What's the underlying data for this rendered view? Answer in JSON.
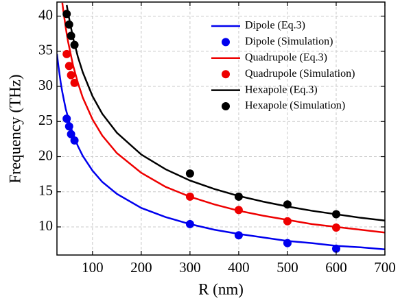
{
  "chart_data": {
    "type": "line",
    "xlabel": "R (nm)",
    "ylabel": "Frequency (THz)",
    "xlim": [
      27,
      700
    ],
    "ylim": [
      6,
      42
    ],
    "xticks": [
      100,
      200,
      300,
      400,
      500,
      600,
      700
    ],
    "yticks": [
      10,
      15,
      20,
      25,
      30,
      35,
      40
    ],
    "grid": true,
    "legend": "upper right",
    "x": [
      27,
      30,
      35,
      38,
      40,
      45,
      47,
      50,
      60,
      70,
      80,
      100,
      120,
      150,
      200,
      250,
      300,
      350,
      400,
      450,
      500,
      550,
      600,
      650,
      700
    ],
    "series": [
      {
        "name": "Dipole (Eq.3)",
        "type": "line",
        "color": "#0000ee",
        "values": [
          34.6,
          32.9,
          30.4,
          29.2,
          28.5,
          26.8,
          26.3,
          25.5,
          23.2,
          21.5,
          20.1,
          18.0,
          16.4,
          14.7,
          12.7,
          11.4,
          10.4,
          9.6,
          9.0,
          8.5,
          8.0,
          7.7,
          7.3,
          7.1,
          6.8
        ]
      },
      {
        "name": "Dipole (Simulation)",
        "type": "scatter",
        "color": "#0000ee",
        "x": [
          47,
          52,
          56,
          63,
          300,
          400,
          500,
          600
        ],
        "values": [
          25.4,
          24.3,
          23.2,
          22.3,
          10.4,
          8.8,
          7.7,
          6.9
        ]
      },
      {
        "name": "Quadrupole (Eq.3)",
        "type": "line",
        "color": "#ee0000",
        "values": [
          null,
          null,
          null,
          41.9,
          40.8,
          38.4,
          37.5,
          36.3,
          33.0,
          30.5,
          28.4,
          25.3,
          23.0,
          20.5,
          17.7,
          15.7,
          14.3,
          13.2,
          12.3,
          11.6,
          11.0,
          10.4,
          10.0,
          9.6,
          9.2
        ]
      },
      {
        "name": "Quadrupole (Simulation)",
        "type": "scatter",
        "color": "#ee0000",
        "x": [
          47,
          52,
          56,
          63,
          300,
          400,
          500,
          600
        ],
        "values": [
          34.6,
          32.9,
          31.6,
          30.5,
          14.3,
          12.4,
          10.8,
          9.9
        ]
      },
      {
        "name": "Hexapole (Eq.3)",
        "type": "line",
        "color": "#000000",
        "values": [
          null,
          null,
          null,
          null,
          null,
          null,
          41.6,
          40.4,
          36.9,
          34.2,
          32.0,
          28.6,
          26.1,
          23.4,
          20.3,
          18.2,
          16.6,
          15.4,
          14.4,
          13.6,
          12.9,
          12.3,
          11.8,
          11.3,
          10.9
        ]
      },
      {
        "name": "Hexapole (Simulation)",
        "type": "scatter",
        "color": "#000000",
        "x": [
          47,
          52,
          56,
          63,
          300,
          400,
          500,
          600
        ],
        "values": [
          40.3,
          38.8,
          37.2,
          35.9,
          17.6,
          14.3,
          13.2,
          11.8
        ]
      }
    ]
  }
}
